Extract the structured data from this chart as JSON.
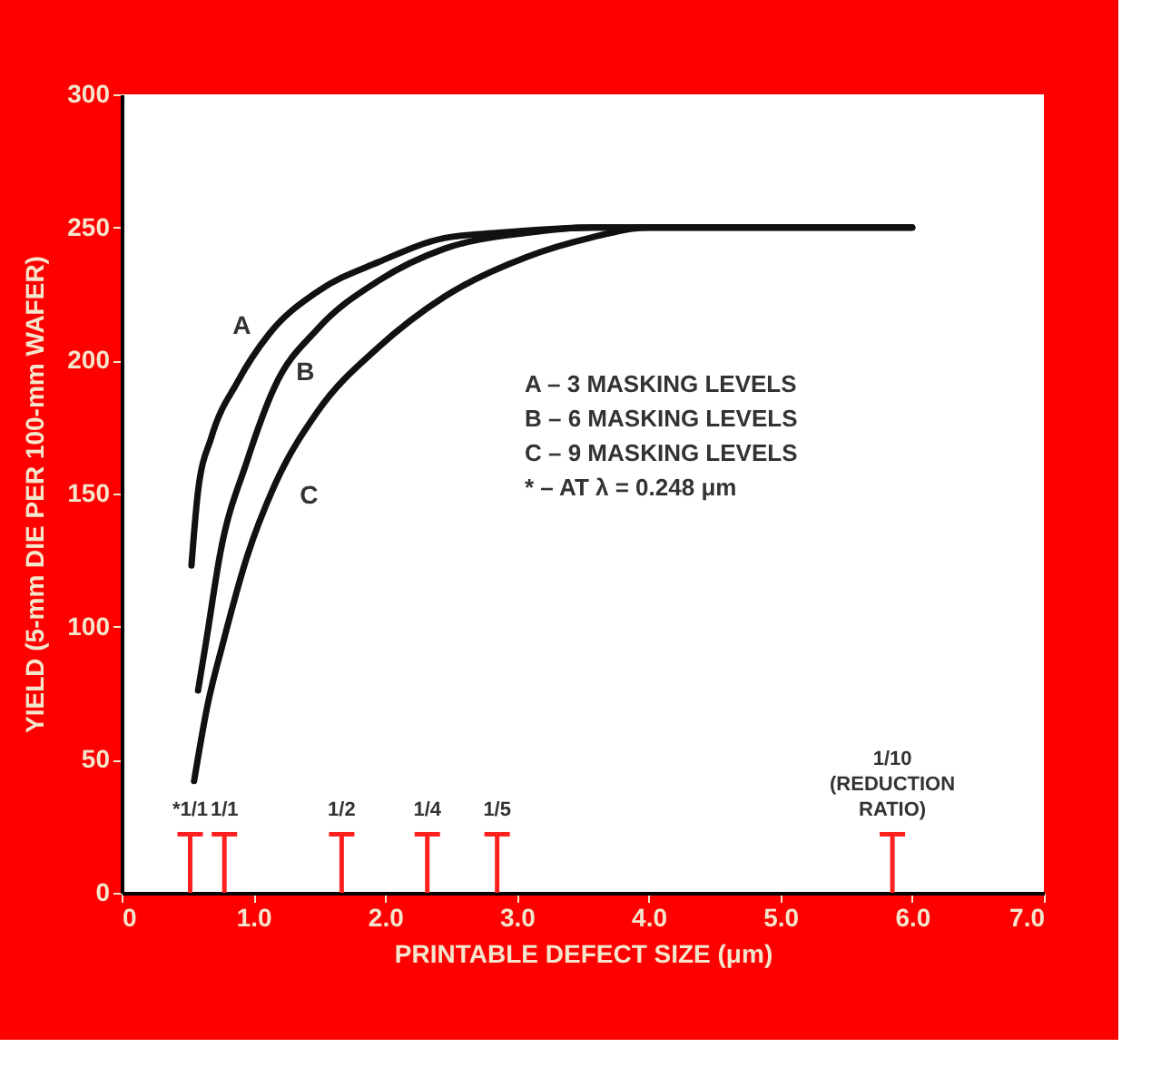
{
  "chart_data": {
    "type": "line",
    "xlabel": "PRINTABLE DEFECT SIZE (μm)",
    "ylabel": "YIELD (5-mm DIE PER 100-mm WAFER)",
    "xlim": [
      0,
      7
    ],
    "ylim": [
      0,
      300
    ],
    "xticks": [
      0,
      {
        "value": 1,
        "label": "1.0"
      },
      {
        "value": 2,
        "label": "2.0"
      },
      {
        "value": 3,
        "label": "3.0"
      },
      {
        "value": 4,
        "label": "4.0"
      },
      {
        "value": 5,
        "label": "5.0"
      },
      {
        "value": 6,
        "label": "6.0"
      },
      {
        "value": 7,
        "label": "7.0"
      }
    ],
    "yticks": [
      0,
      50,
      100,
      150,
      200,
      250,
      300
    ],
    "grid": false,
    "marker": "none",
    "line_style": "solid",
    "series": [
      {
        "name": "A",
        "color": "#111111",
        "x": [
          0.53,
          0.58,
          0.68,
          0.88,
          1.12,
          1.49,
          1.95,
          2.45,
          2.86,
          3.6,
          6.0
        ],
        "values": [
          123,
          151,
          171,
          192,
          210,
          226,
          237,
          246,
          248,
          250,
          250
        ]
      },
      {
        "name": "B",
        "color": "#111111",
        "x": [
          0.58,
          0.64,
          0.75,
          0.95,
          1.16,
          1.49,
          1.95,
          2.45,
          3.08,
          3.55,
          6.0
        ],
        "values": [
          76,
          94,
          128,
          162,
          190,
          212,
          230,
          242,
          248,
          250,
          250
        ]
      },
      {
        "name": "C",
        "color": "#111111",
        "x": [
          0.55,
          0.65,
          0.77,
          0.95,
          1.16,
          1.49,
          1.95,
          2.45,
          3.08,
          3.55,
          4.0,
          6.0
        ],
        "values": [
          42,
          70,
          94,
          126,
          153,
          181,
          205,
          224,
          239,
          246,
          250,
          250
        ]
      },
      {
        "type": "bar",
        "color": "#ff2020",
        "x": [
          0.52,
          0.78,
          1.67,
          2.32,
          2.85,
          5.85
        ],
        "values": [
          22,
          22,
          22,
          22,
          22,
          22
        ]
      }
    ],
    "annotations": [
      "A – 3 MASKING LEVELS",
      "B – 6 MASKING LEVELS",
      "C – 9 MASKING LEVELS",
      "* – AT λ = 0.248 μm",
      {
        "text": "*1/1",
        "x": 0.52,
        "y": 22
      },
      {
        "text": "1/1",
        "x": 0.78,
        "y": 22
      },
      {
        "text": "1/2",
        "x": 1.67,
        "y": 22
      },
      {
        "text": "1/4",
        "x": 2.32,
        "y": 22
      },
      {
        "text": "1/5",
        "x": 2.85,
        "y": 22
      },
      {
        "text": "1/10\n(REDUCTION\nRATIO)",
        "x": 5.85,
        "y": 22
      }
    ]
  }
}
